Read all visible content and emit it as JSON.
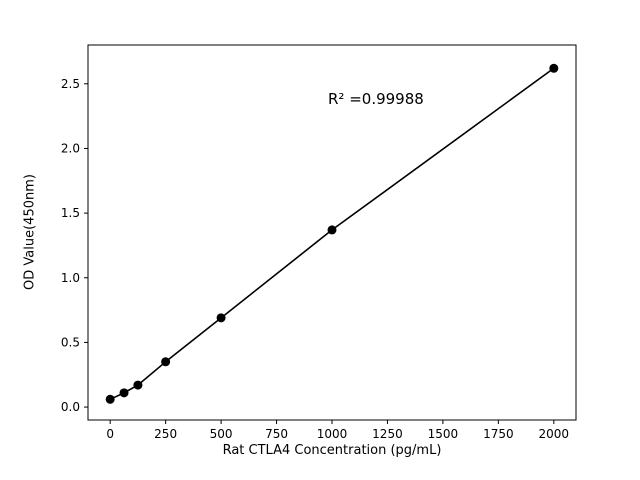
{
  "chart_data": {
    "type": "scatter",
    "title": "",
    "xlabel": "Rat CTLA4 Concentration (pg/mL)",
    "ylabel": "OD Value(450nm)",
    "annotation": "R² =0.99988",
    "x": [
      0,
      62.5,
      125,
      250,
      500,
      1000,
      2000
    ],
    "y": [
      0.06,
      0.11,
      0.17,
      0.35,
      0.69,
      1.37,
      2.62
    ],
    "xticks": [
      0,
      250,
      500,
      750,
      1000,
      1250,
      1500,
      1750,
      2000
    ],
    "yticks": [
      0.0,
      0.5,
      1.0,
      1.5,
      2.0,
      2.5
    ],
    "xlim": [
      -100,
      2100
    ],
    "ylim": [
      -0.1,
      2.8
    ],
    "line": true,
    "legend": "none",
    "grid": false,
    "marker_color": "#000000",
    "line_color": "#000000",
    "background": "#ffffff"
  }
}
